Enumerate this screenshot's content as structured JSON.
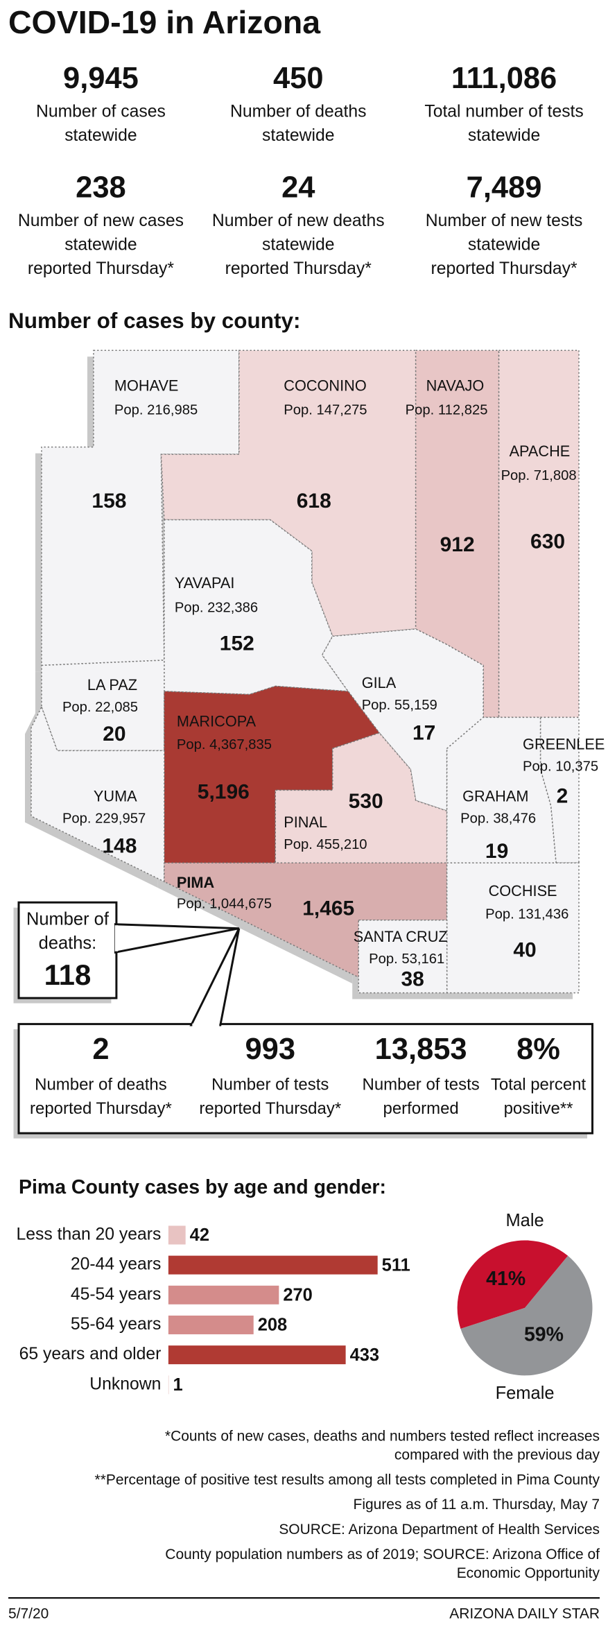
{
  "title": "COVID-19 in Arizona",
  "statewide": [
    {
      "value": "9,945",
      "label": [
        "Number of cases",
        "statewide"
      ]
    },
    {
      "value": "450",
      "label": [
        "Number of deaths",
        "statewide"
      ]
    },
    {
      "value": "111,086",
      "label": [
        "Total number of tests",
        "statewide"
      ]
    },
    {
      "value": "238",
      "label": [
        "Number of new cases",
        "statewide",
        "reported Thursday*"
      ]
    },
    {
      "value": "24",
      "label": [
        "Number of new deaths",
        "statewide",
        "reported Thursday*"
      ]
    },
    {
      "value": "7,489",
      "label": [
        "Number of new tests",
        "statewide",
        "reported Thursday*"
      ]
    }
  ],
  "map": {
    "title": "Number of cases by county:",
    "counties": [
      {
        "name": "MOHAVE",
        "population": "Pop. 216,985",
        "cases": "158"
      },
      {
        "name": "COCONINO",
        "population": "Pop. 147,275",
        "cases": "618"
      },
      {
        "name": "NAVAJO",
        "population": "Pop. 112,825",
        "cases": "912"
      },
      {
        "name": "APACHE",
        "population": "Pop. 71,808",
        "cases": "630"
      },
      {
        "name": "YAVAPAI",
        "population": "Pop. 232,386",
        "cases": "152"
      },
      {
        "name": "LA PAZ",
        "population": "Pop. 22,085",
        "cases": "20"
      },
      {
        "name": "GILA",
        "population": "Pop. 55,159",
        "cases": "17"
      },
      {
        "name": "MARICOPA",
        "population": "Pop. 4,367,835",
        "cases": "5,196"
      },
      {
        "name": "GREENLEE",
        "population": "Pop. 10,375",
        "cases": "2"
      },
      {
        "name": "PINAL",
        "population": "Pop. 455,210",
        "cases": "530"
      },
      {
        "name": "YUMA",
        "population": "Pop. 229,957",
        "cases": "148"
      },
      {
        "name": "GRAHAM",
        "population": "Pop. 38,476",
        "cases": "19"
      },
      {
        "name": "PIMA",
        "population": "Pop. 1,044,675",
        "cases": "1,465"
      },
      {
        "name": "COCHISE",
        "population": "Pop. 131,436",
        "cases": "40"
      },
      {
        "name": "SANTA CRUZ",
        "population": "Pop. 53,161",
        "cases": "38"
      }
    ]
  },
  "pima": {
    "deaths": {
      "label": [
        "Number of",
        "deaths:"
      ],
      "value": "118"
    },
    "stats": [
      {
        "value": "2",
        "label": [
          "Number of deaths",
          "reported Thursday*"
        ]
      },
      {
        "value": "993",
        "label": [
          "Number of tests",
          "reported Thursday*"
        ]
      },
      {
        "value": "13,853",
        "label": [
          "Number of tests",
          "performed"
        ]
      },
      {
        "value": "8%",
        "label": [
          "Total percent",
          "positive**"
        ]
      }
    ]
  },
  "chart_data": [
    {
      "type": "bar",
      "title": "Pima County cases by age and gender:",
      "categories": [
        "Less than 20 years",
        "20-44 years",
        "45-54 years",
        "55-64 years",
        "65 years and older",
        "Unknown"
      ],
      "values": [
        42,
        511,
        270,
        208,
        433,
        1
      ],
      "colors": [
        "#e8c3c2",
        "#b03a33",
        "#d48c8b",
        "#d48c8b",
        "#b03a33",
        "#e8c3c2"
      ]
    },
    {
      "type": "pie",
      "categories": [
        "Male",
        "Female"
      ],
      "values": [
        41,
        59
      ],
      "value_labels": [
        "41%",
        "59%"
      ],
      "colors": [
        "#c8102e",
        "#939598"
      ]
    }
  ],
  "notes": [
    [
      "*Counts of new cases, deaths and numbers tested reflect increases",
      "compared with the previous day"
    ],
    [
      "**Percentage of positive test results among all tests completed in Pima County"
    ],
    [
      "Figures as of 11 a.m. Thursday, May 7"
    ],
    [
      "SOURCE: Arizona Department of Health Services"
    ],
    [
      "County population numbers as of 2019; SOURCE: Arizona Office of",
      "Economic Opportunity"
    ]
  ],
  "footer": {
    "date": "5/7/20",
    "credit": "ARIZONA DAILY STAR"
  }
}
